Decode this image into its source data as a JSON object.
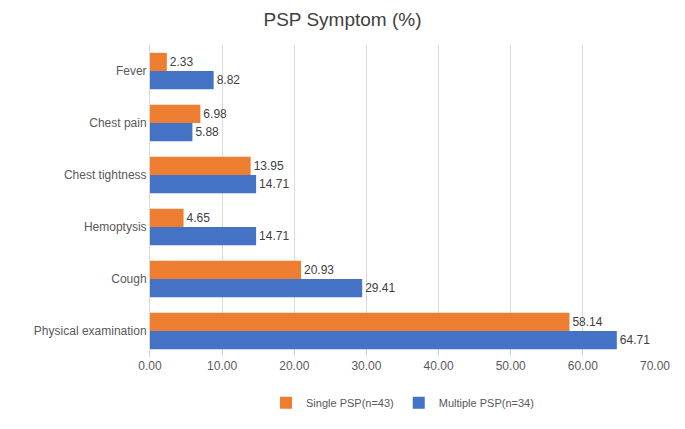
{
  "chart_data": {
    "type": "bar",
    "title": "PSP Symptom (%)",
    "orientation": "horizontal",
    "categories": [
      "Physical examination",
      "Cough",
      "Hemoptysis",
      "Chest tightness",
      "Chest pain",
      "Fever"
    ],
    "series": [
      {
        "name": "Single PSP(n=43)",
        "color": "#ED7D31",
        "values": [
          58.14,
          20.93,
          4.65,
          13.95,
          6.98,
          2.33
        ]
      },
      {
        "name": "Multiple PSP(n=34)",
        "color": "#4472C4",
        "values": [
          64.71,
          29.41,
          14.71,
          14.71,
          5.88,
          8.82
        ]
      }
    ],
    "xlim": [
      0,
      70
    ],
    "xticks": [
      {
        "value": 0,
        "label": "0.00"
      },
      {
        "value": 10,
        "label": "10.00"
      },
      {
        "value": 20,
        "label": "20.00"
      },
      {
        "value": 30,
        "label": "30.00"
      },
      {
        "value": 40,
        "label": "40.00"
      },
      {
        "value": 50,
        "label": "50.00"
      },
      {
        "value": 60,
        "label": "60.00"
      },
      {
        "value": 70,
        "label": "70.00"
      }
    ],
    "grid": true,
    "legend": "bottom",
    "data_labels": true
  }
}
